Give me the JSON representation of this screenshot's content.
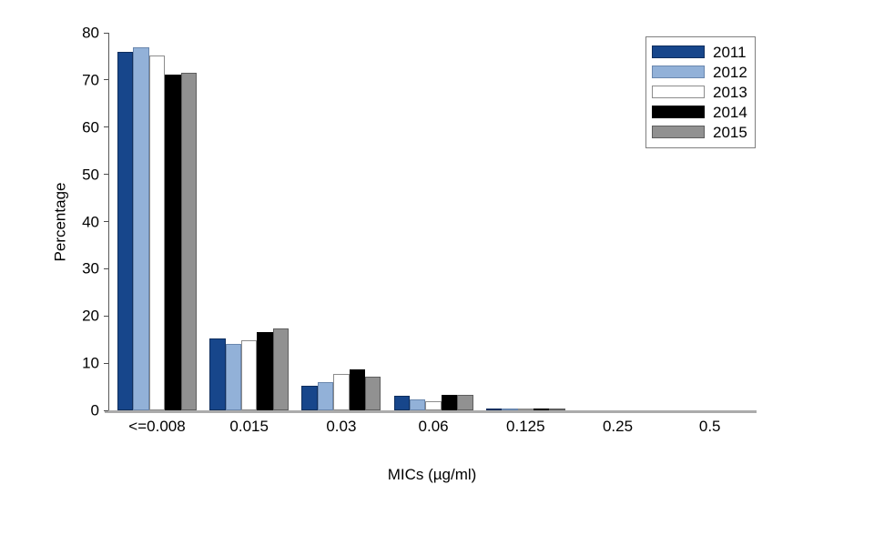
{
  "chart_data": {
    "type": "bar",
    "title": "",
    "xlabel": "MICs (µg/ml)",
    "ylabel": "Percentage",
    "categories": [
      "<=0.008",
      "0.015",
      "0.03",
      "0.06",
      "0.125",
      "0.25",
      "0.5"
    ],
    "series": [
      {
        "name": "2011",
        "color": "#17468B",
        "border": "#0E2E5E",
        "values": [
          75.9,
          15.2,
          5.3,
          3.0,
          0.4,
          0,
          0
        ]
      },
      {
        "name": "2012",
        "color": "#92B1D8",
        "border": "#6A87AE",
        "values": [
          76.9,
          14.1,
          6.0,
          2.3,
          0.4,
          0,
          0
        ]
      },
      {
        "name": "2013",
        "color": "#FFFFFF",
        "border": "#8C8C8C",
        "values": [
          75.2,
          14.8,
          7.8,
          1.9,
          0.3,
          0,
          0
        ]
      },
      {
        "name": "2014",
        "color": "#000000",
        "border": "#000000",
        "values": [
          71.2,
          16.5,
          8.6,
          3.2,
          0.3,
          0,
          0
        ]
      },
      {
        "name": "2015",
        "color": "#919191",
        "border": "#5E5E5E",
        "values": [
          71.5,
          17.4,
          7.2,
          3.2,
          0.4,
          0,
          0
        ]
      }
    ],
    "ylim": [
      0,
      80
    ],
    "yticks": [
      0,
      10,
      20,
      30,
      40,
      50,
      60,
      70,
      80
    ],
    "grid": false,
    "legend_position": "top-right",
    "axis_colors": {
      "y_axis": "#595959",
      "x_axis": "#ABABAB",
      "tick": "#4D4D4D"
    },
    "background": "#FFFFFF"
  }
}
